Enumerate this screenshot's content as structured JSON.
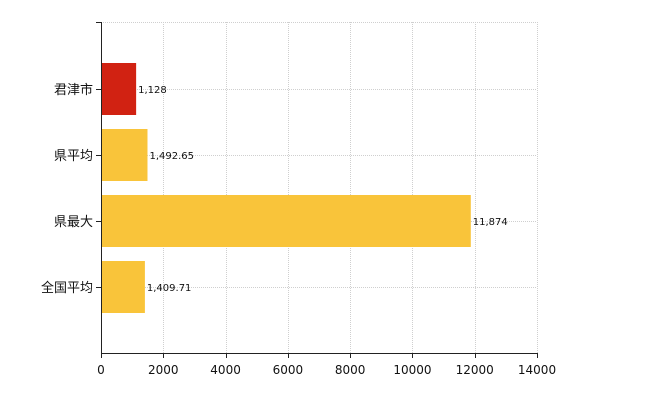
{
  "chart_data": {
    "type": "bar",
    "orientation": "horizontal",
    "title": "",
    "xlabel": "",
    "ylabel": "",
    "categories": [
      "君津市",
      "県平均",
      "県最大",
      "全国平均"
    ],
    "values": [
      1128,
      1492.65,
      11874,
      1409.71
    ],
    "data_labels": [
      "1,128",
      "1,492.65",
      "11,874",
      "1,409.71"
    ],
    "bar_colors": [
      "#d12212",
      "#f9c43a",
      "#f9c43a",
      "#f9c43a"
    ],
    "xlim": [
      0,
      14000
    ],
    "x_ticks": [
      0,
      2000,
      4000,
      6000,
      8000,
      10000,
      12000,
      14000
    ],
    "grid": true,
    "legend": "none"
  }
}
